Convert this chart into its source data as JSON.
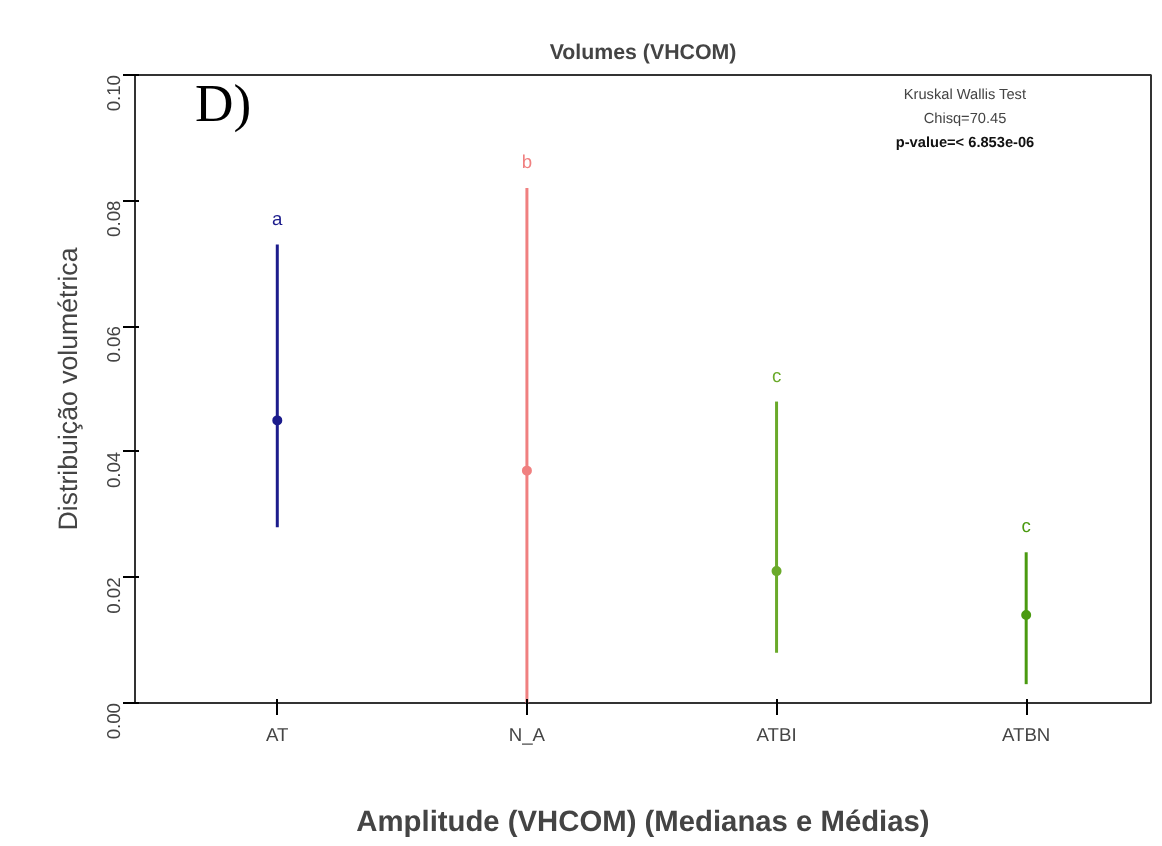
{
  "chart_data": {
    "type": "scatter",
    "title": "Volumes (VHCOM)",
    "xlabel": "Amplitude (VHCOM) (Medianas e Médias)",
    "ylabel": "Distribuição volumétrica",
    "categories": [
      "AT",
      "N_A",
      "ATBI",
      "ATBN"
    ],
    "values": [
      0.045,
      0.037,
      0.021,
      0.014
    ],
    "errors": [
      [
        0.028,
        0.073
      ],
      [
        0.0,
        0.082
      ],
      [
        0.008,
        0.048
      ],
      [
        0.003,
        0.024
      ]
    ],
    "colors": [
      "#1c1c8c",
      "#f08080",
      "#6aaa2a",
      "#4a9a10"
    ],
    "marker": "circle",
    "ylim": [
      0,
      0.1
    ],
    "yticks": [
      {
        "value": 0,
        "label": "0.00"
      },
      {
        "value": 0.02,
        "label": "0.02"
      },
      {
        "value": 0.04,
        "label": "0.04"
      },
      {
        "value": 0.06,
        "label": "0.06"
      },
      {
        "value": 0.08,
        "label": "0.08"
      },
      {
        "value": 0.1,
        "label": "0.10"
      }
    ],
    "grid": false,
    "annotations": [
      "D)",
      "a",
      "b",
      "c",
      "c",
      "Kruskal Wallis Test",
      "Chisq=70.45",
      "p-value=< 6.853e-06"
    ]
  }
}
